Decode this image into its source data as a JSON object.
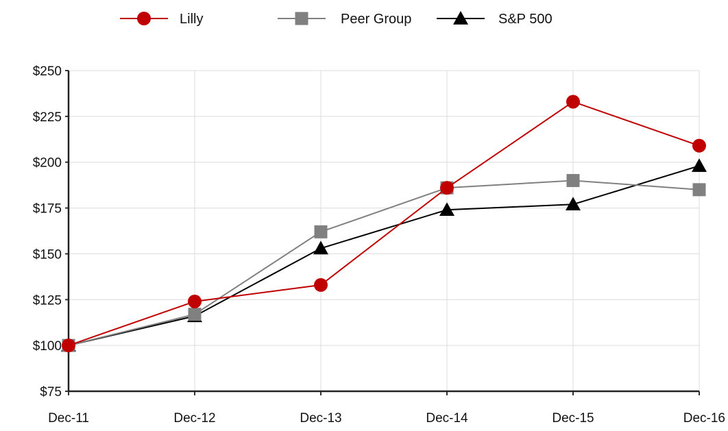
{
  "chart_data": {
    "type": "line",
    "categories": [
      "Dec-11",
      "Dec-12",
      "Dec-13",
      "Dec-14",
      "Dec-15",
      "Dec-16"
    ],
    "series": [
      {
        "name": "Lilly",
        "values": [
          100,
          124,
          133,
          186,
          233,
          209
        ],
        "color": "#c00000",
        "marker": "circle"
      },
      {
        "name": "Peer Group",
        "values": [
          100,
          117,
          162,
          186,
          190,
          185
        ],
        "color": "#808080",
        "marker": "square"
      },
      {
        "name": "S&P 500",
        "values": [
          100,
          116,
          153,
          174,
          177,
          198
        ],
        "color": "#000000",
        "marker": "triangle"
      }
    ],
    "ylim": [
      75,
      250
    ],
    "yticks": [
      75,
      100,
      125,
      150,
      175,
      200,
      225,
      250
    ],
    "ytick_labels": [
      "$75",
      "$100",
      "$125",
      "$150",
      "$175",
      "$200",
      "$225",
      "$250"
    ],
    "grid": true,
    "legend_position": "top-center",
    "title": "",
    "xlabel": "",
    "ylabel": ""
  }
}
